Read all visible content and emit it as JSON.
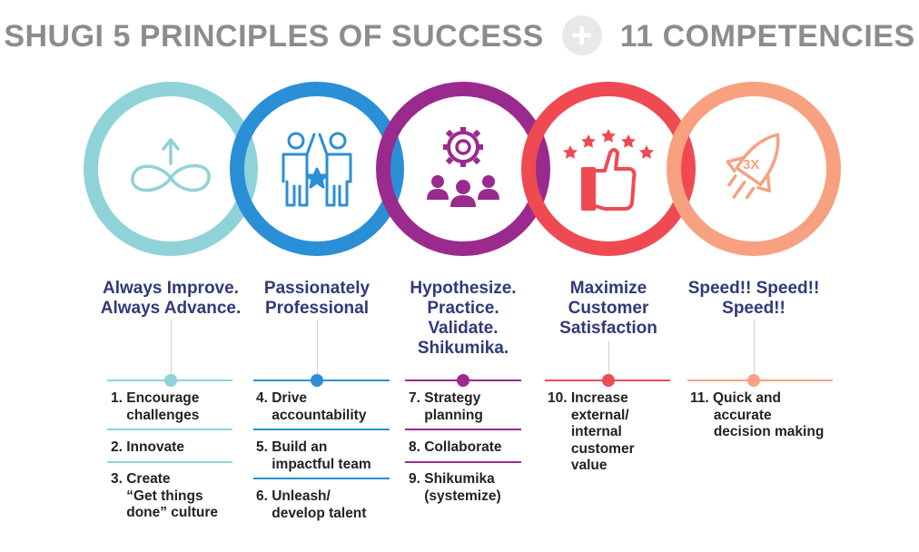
{
  "title": {
    "left": "SHUGI 5 PRINCIPLES OF SUCCESS",
    "plus": "+",
    "right": "11 COMPETENCIES"
  },
  "colors": {
    "teal": "#8fd3d8",
    "blue": "#2a8fd6",
    "purple": "#9b2a8e",
    "red": "#ef4a52",
    "orange": "#f7a181",
    "heading": "#2f3a7a"
  },
  "principles": [
    {
      "icon": "infinity-up-arrow-icon",
      "heading": [
        "Always Improve.",
        "Always Advance."
      ],
      "items": [
        [
          "1. Encourage",
          "    challenges"
        ],
        [
          "2. Innovate"
        ],
        [
          "3. Create",
          "    “Get things",
          "    done” culture"
        ]
      ]
    },
    {
      "icon": "team-high-five-star-icon",
      "heading": [
        "Passionately",
        "Professional"
      ],
      "items": [
        [
          "4. Drive",
          "    accountability"
        ],
        [
          "5. Build an",
          "    impactful team"
        ],
        [
          "6. Unleash/",
          "    develop talent"
        ]
      ]
    },
    {
      "icon": "gear-people-icon",
      "heading": [
        "Hypothesize.",
        "Practice.",
        "Validate.",
        "Shikumika."
      ],
      "items": [
        [
          "7. Strategy",
          "    planning"
        ],
        [
          "8. Collaborate"
        ],
        [
          "9. Shikumika",
          "    (systemize)"
        ]
      ]
    },
    {
      "icon": "thumbs-up-stars-icon",
      "heading": [
        "Maximize",
        "Customer",
        "Satisfaction"
      ],
      "items": [
        [
          "10. Increase",
          "      external/",
          "      internal",
          "      customer",
          "      value"
        ]
      ]
    },
    {
      "icon": "rocket-3x-icon",
      "badge": "3X",
      "heading": [
        "Speed!! Speed!!",
        "Speed!!"
      ],
      "items": [
        [
          "11. Quick and",
          "      accurate",
          "      decision making"
        ]
      ]
    }
  ]
}
